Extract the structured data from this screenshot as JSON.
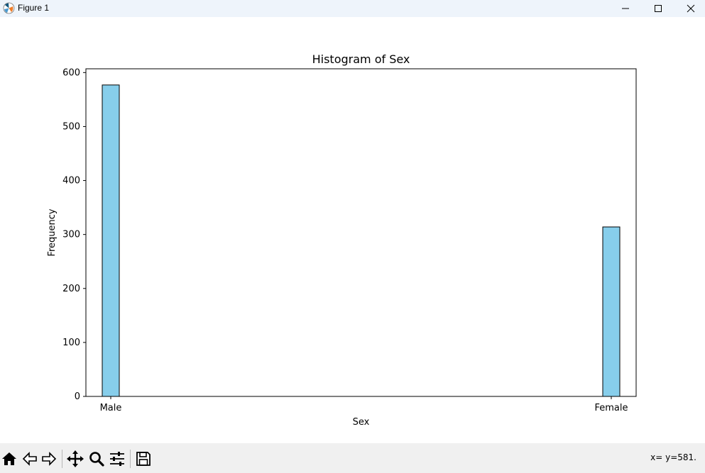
{
  "window": {
    "title": "Figure 1",
    "buttons": [
      "minimize",
      "maximize",
      "close"
    ]
  },
  "chart_data": {
    "type": "bar",
    "title": "Histogram of Sex",
    "xlabel": "Sex",
    "ylabel": "Frequency",
    "categories": [
      "Male",
      "Female"
    ],
    "values": [
      577,
      314
    ],
    "ylim": [
      0,
      607
    ],
    "yticks": [
      0,
      100,
      200,
      300,
      400,
      500,
      600
    ],
    "grid": false,
    "legend": "none",
    "bar_color": "#87ceeb",
    "edge_color": "#000000"
  },
  "toolbar": {
    "tools": [
      "home-icon",
      "back-icon",
      "forward-icon",
      "pan-icon",
      "zoom-icon",
      "configure-icon",
      "save-icon"
    ],
    "coordinates": "x= y=581."
  }
}
